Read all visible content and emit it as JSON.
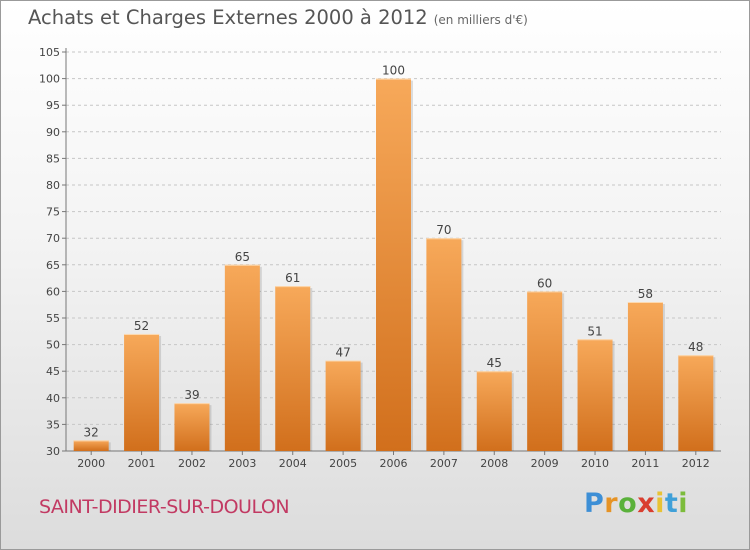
{
  "title": "Achats et Charges Externes 2000 à 2012",
  "subtitle": "(en milliers d'€)",
  "commune": "SAINT-DIDIER-SUR-DOULON",
  "logo_text": "Proxiti",
  "colors": {
    "bar_light": "#f7a95a",
    "bar_dark": "#d16f1c",
    "title": "#555555",
    "commune": "#c23a63"
  },
  "chart_data": {
    "type": "bar",
    "title": "Achats et Charges Externes 2000 à 2012",
    "subtitle": "(en milliers d'€)",
    "categories": [
      "2000",
      "2001",
      "2002",
      "2003",
      "2004",
      "2005",
      "2006",
      "2007",
      "2008",
      "2009",
      "2010",
      "2011",
      "2012"
    ],
    "values": [
      32,
      52,
      39,
      65,
      61,
      47,
      100,
      70,
      45,
      60,
      51,
      58,
      48
    ],
    "ylim": [
      30,
      105
    ],
    "yticks": [
      30,
      35,
      40,
      45,
      50,
      55,
      60,
      65,
      70,
      75,
      80,
      85,
      90,
      95,
      100,
      105
    ],
    "grid": true,
    "xlabel": "",
    "ylabel": ""
  }
}
